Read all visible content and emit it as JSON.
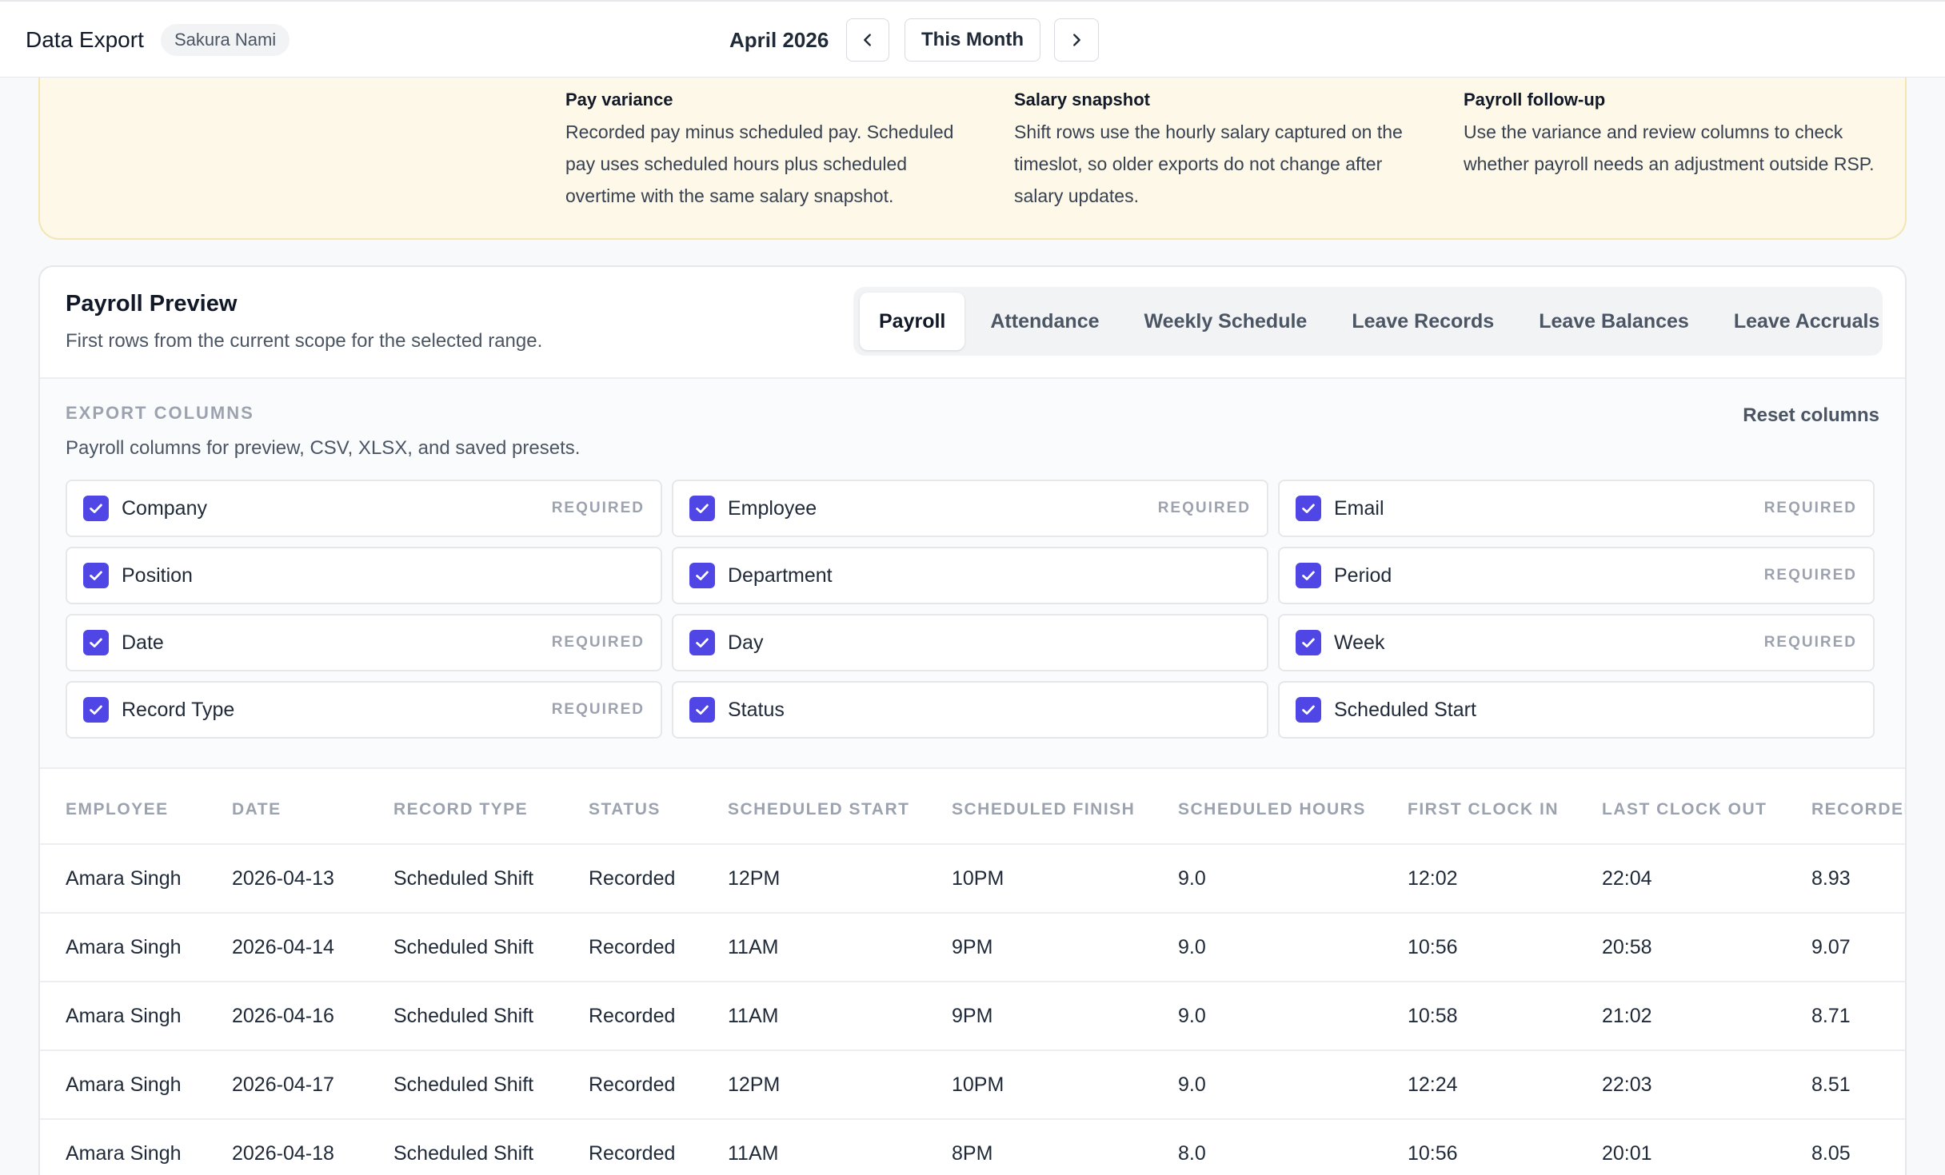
{
  "topbar": {
    "app_title": "Data Export",
    "user": "Sakura Nami",
    "month": "April 2026",
    "this_month_label": "This Month"
  },
  "info": [
    {
      "title": "Pay variance",
      "text": "Recorded pay minus scheduled pay. Scheduled pay uses scheduled hours plus scheduled overtime with the same salary snapshot."
    },
    {
      "title": "Salary snapshot",
      "text": "Shift rows use the hourly salary captured on the timeslot, so older exports do not change after salary updates."
    },
    {
      "title": "Payroll follow-up",
      "text": "Use the variance and review columns to check whether payroll needs an adjustment outside RSP."
    }
  ],
  "preview": {
    "title": "Payroll Preview",
    "subtitle": "First rows from the current scope for the selected range.",
    "tabs": [
      "Payroll",
      "Attendance",
      "Weekly Schedule",
      "Leave Records",
      "Leave Balances",
      "Leave Accruals"
    ],
    "active_tab": "Payroll"
  },
  "export_columns": {
    "heading": "EXPORT COLUMNS",
    "description": "Payroll columns for preview, CSV, XLSX, and saved presets.",
    "reset_label": "Reset columns",
    "required_label": "REQUIRED",
    "items": [
      {
        "label": "Company",
        "required": true
      },
      {
        "label": "Employee",
        "required": true
      },
      {
        "label": "Email",
        "required": true
      },
      {
        "label": "Position",
        "required": false
      },
      {
        "label": "Department",
        "required": false
      },
      {
        "label": "Period",
        "required": true
      },
      {
        "label": "Date",
        "required": true
      },
      {
        "label": "Day",
        "required": false
      },
      {
        "label": "Week",
        "required": true
      },
      {
        "label": "Record Type",
        "required": true
      },
      {
        "label": "Status",
        "required": false
      },
      {
        "label": "Scheduled Start",
        "required": false
      }
    ]
  },
  "table": {
    "columns": [
      "EMPLOYEE",
      "DATE",
      "RECORD TYPE",
      "STATUS",
      "SCHEDULED START",
      "SCHEDULED FINISH",
      "SCHEDULED HOURS",
      "FIRST CLOCK IN",
      "LAST CLOCK OUT",
      "RECORDED"
    ],
    "rows": [
      [
        "Amara Singh",
        "2026-04-13",
        "Scheduled Shift",
        "Recorded",
        "12PM",
        "10PM",
        "9.0",
        "12:02",
        "22:04",
        "8.93"
      ],
      [
        "Amara Singh",
        "2026-04-14",
        "Scheduled Shift",
        "Recorded",
        "11AM",
        "9PM",
        "9.0",
        "10:56",
        "20:58",
        "9.07"
      ],
      [
        "Amara Singh",
        "2026-04-16",
        "Scheduled Shift",
        "Recorded",
        "11AM",
        "9PM",
        "9.0",
        "10:58",
        "21:02",
        "8.71"
      ],
      [
        "Amara Singh",
        "2026-04-17",
        "Scheduled Shift",
        "Recorded",
        "12PM",
        "10PM",
        "9.0",
        "12:24",
        "22:03",
        "8.51"
      ],
      [
        "Amara Singh",
        "2026-04-18",
        "Scheduled Shift",
        "Recorded",
        "11AM",
        "8PM",
        "8.0",
        "10:56",
        "20:01",
        "8.05"
      ]
    ]
  },
  "colors": {
    "accent": "#4f46e5",
    "banner_bg": "#fdf8e7",
    "muted_text": "#9ca3af"
  }
}
